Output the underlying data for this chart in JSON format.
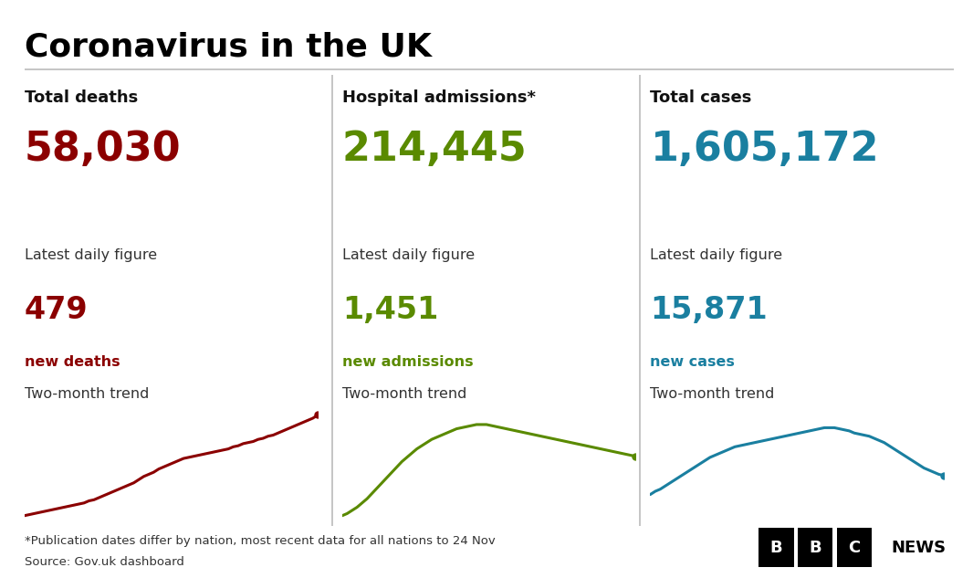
{
  "title": "Coronavirus in the UK",
  "background_color": "#ffffff",
  "title_color": "#000000",
  "title_fontsize": 26,
  "panels": [
    {
      "label": "Total deaths",
      "main_value": "58,030",
      "main_color": "#8b0000",
      "daily_label": "Latest daily figure",
      "daily_value": "479",
      "daily_color": "#8b0000",
      "daily_sub": "new deaths",
      "daily_sub_color": "#8b0000",
      "trend_label": "Two-month trend",
      "trend_color": "#8b0000",
      "trend_x": [
        0,
        1,
        2,
        3,
        4,
        5,
        6,
        7,
        8,
        9,
        10,
        11,
        12,
        13,
        14,
        15,
        16,
        17,
        18,
        19,
        20,
        21,
        22,
        23,
        24,
        25,
        26,
        27,
        28,
        29,
        30,
        31,
        32,
        33,
        34,
        35,
        36,
        37,
        38,
        39,
        40,
        41,
        42,
        43,
        44,
        45,
        46,
        47,
        48,
        49,
        50,
        51,
        52,
        53,
        54,
        55,
        56,
        57,
        58,
        59
      ],
      "trend_y": [
        0.02,
        0.03,
        0.04,
        0.05,
        0.06,
        0.07,
        0.08,
        0.09,
        0.1,
        0.11,
        0.12,
        0.13,
        0.14,
        0.16,
        0.17,
        0.19,
        0.21,
        0.23,
        0.25,
        0.27,
        0.29,
        0.31,
        0.33,
        0.36,
        0.39,
        0.41,
        0.43,
        0.46,
        0.48,
        0.5,
        0.52,
        0.54,
        0.56,
        0.57,
        0.58,
        0.59,
        0.6,
        0.61,
        0.62,
        0.63,
        0.64,
        0.65,
        0.67,
        0.68,
        0.7,
        0.71,
        0.72,
        0.74,
        0.75,
        0.77,
        0.78,
        0.8,
        0.82,
        0.84,
        0.86,
        0.88,
        0.9,
        0.92,
        0.94,
        0.97
      ]
    },
    {
      "label": "Hospital admissions*",
      "main_value": "214,445",
      "main_color": "#5a8a00",
      "daily_label": "Latest daily figure",
      "daily_value": "1,451",
      "daily_color": "#5a8a00",
      "daily_sub": "new admissions",
      "daily_sub_color": "#5a8a00",
      "trend_label": "Two-month trend",
      "trend_color": "#5a8a00",
      "trend_x": [
        0,
        1,
        2,
        3,
        4,
        5,
        6,
        7,
        8,
        9,
        10,
        11,
        12,
        13,
        14,
        15,
        16,
        17,
        18,
        19,
        20,
        21,
        22,
        23,
        24,
        25,
        26,
        27,
        28,
        29,
        30,
        31,
        32,
        33,
        34,
        35,
        36,
        37,
        38,
        39,
        40,
        41,
        42,
        43,
        44,
        45,
        46,
        47,
        48,
        49,
        50,
        51,
        52,
        53,
        54,
        55,
        56,
        57,
        58,
        59
      ],
      "trend_y": [
        0.02,
        0.04,
        0.07,
        0.1,
        0.14,
        0.18,
        0.23,
        0.28,
        0.33,
        0.38,
        0.43,
        0.48,
        0.53,
        0.57,
        0.61,
        0.65,
        0.68,
        0.71,
        0.74,
        0.76,
        0.78,
        0.8,
        0.82,
        0.84,
        0.85,
        0.86,
        0.87,
        0.88,
        0.88,
        0.88,
        0.87,
        0.86,
        0.85,
        0.84,
        0.83,
        0.82,
        0.81,
        0.8,
        0.79,
        0.78,
        0.77,
        0.76,
        0.75,
        0.74,
        0.73,
        0.72,
        0.71,
        0.7,
        0.69,
        0.68,
        0.67,
        0.66,
        0.65,
        0.64,
        0.63,
        0.62,
        0.61,
        0.6,
        0.59,
        0.58
      ]
    },
    {
      "label": "Total cases",
      "main_value": "1,605,172",
      "main_color": "#1a7fa0",
      "daily_label": "Latest daily figure",
      "daily_value": "15,871",
      "daily_color": "#1a7fa0",
      "daily_sub": "new cases",
      "daily_sub_color": "#1a7fa0",
      "trend_label": "Two-month trend",
      "trend_color": "#1a7fa0",
      "trend_x": [
        0,
        1,
        2,
        3,
        4,
        5,
        6,
        7,
        8,
        9,
        10,
        11,
        12,
        13,
        14,
        15,
        16,
        17,
        18,
        19,
        20,
        21,
        22,
        23,
        24,
        25,
        26,
        27,
        28,
        29,
        30,
        31,
        32,
        33,
        34,
        35,
        36,
        37,
        38,
        39,
        40,
        41,
        42,
        43,
        44,
        45,
        46,
        47,
        48,
        49,
        50,
        51,
        52,
        53,
        54,
        55,
        56,
        57,
        58,
        59
      ],
      "trend_y": [
        0.22,
        0.25,
        0.27,
        0.3,
        0.33,
        0.36,
        0.39,
        0.42,
        0.45,
        0.48,
        0.51,
        0.54,
        0.57,
        0.59,
        0.61,
        0.63,
        0.65,
        0.67,
        0.68,
        0.69,
        0.7,
        0.71,
        0.72,
        0.73,
        0.74,
        0.75,
        0.76,
        0.77,
        0.78,
        0.79,
        0.8,
        0.81,
        0.82,
        0.83,
        0.84,
        0.85,
        0.85,
        0.85,
        0.84,
        0.83,
        0.82,
        0.8,
        0.79,
        0.78,
        0.77,
        0.75,
        0.73,
        0.71,
        0.68,
        0.65,
        0.62,
        0.59,
        0.56,
        0.53,
        0.5,
        0.47,
        0.45,
        0.43,
        0.41,
        0.4
      ]
    }
  ],
  "footnote": "*Publication dates differ by nation, most recent data for all nations to 24 Nov",
  "source": "Source: Gov.uk dashboard",
  "footnote_color": "#333333",
  "divider_color": "#bbbbbb"
}
